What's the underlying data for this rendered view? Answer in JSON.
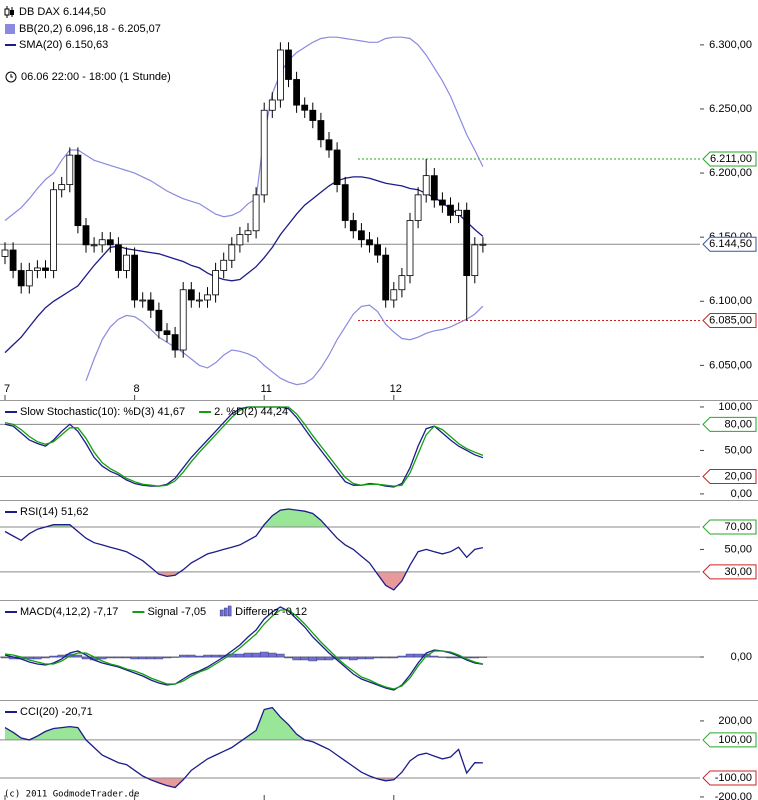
{
  "chart_data": [
    {
      "type": "candlestick",
      "title": "DB DAX 6.144,50",
      "subtitle": "06.06 22:00 - 18:00 (1 Stunde)",
      "categories": [
        "7",
        null,
        null,
        null,
        null,
        null,
        null,
        null,
        null,
        null,
        null,
        null,
        null,
        null,
        null,
        null,
        "8",
        null,
        null,
        null,
        null,
        null,
        null,
        null,
        null,
        null,
        null,
        null,
        null,
        null,
        null,
        null,
        "11",
        null,
        null,
        null,
        null,
        null,
        null,
        null,
        null,
        null,
        null,
        null,
        null,
        null,
        null,
        null,
        "12",
        null,
        null,
        null,
        null,
        null,
        null,
        null,
        null,
        null,
        null,
        null
      ],
      "open": [
        6135,
        6140,
        6124,
        6112,
        6124,
        6126,
        6124,
        6187,
        6191,
        6214,
        6159,
        6144,
        6144,
        6148,
        6144,
        6124,
        6136,
        6101,
        6101,
        6093,
        6077,
        6074,
        6062,
        6109,
        6101,
        6101,
        6105,
        6124,
        6132,
        6144,
        6152,
        6155,
        6183,
        6249,
        6257,
        6296,
        6273,
        6253,
        6249,
        6241,
        6226,
        6218,
        6191,
        6163,
        6155,
        6148,
        6144,
        6136,
        6101,
        6109,
        6120,
        6163,
        6183,
        6198,
        6179,
        6175,
        6167,
        6171,
        6120,
        6144
      ],
      "high": [
        6146,
        6146,
        6130,
        6130,
        6132,
        6132,
        6193,
        6197,
        6220,
        6220,
        6165,
        6150,
        6154,
        6154,
        6150,
        6142,
        6142,
        6107,
        6107,
        6099,
        6083,
        6080,
        6115,
        6115,
        6107,
        6111,
        6130,
        6138,
        6150,
        6158,
        6161,
        6189,
        6255,
        6263,
        6302,
        6302,
        6279,
        6259,
        6255,
        6247,
        6232,
        6224,
        6197,
        6169,
        6161,
        6154,
        6150,
        6142,
        6115,
        6126,
        6169,
        6189,
        6211,
        6204,
        6185,
        6181,
        6177,
        6177,
        6150,
        6150
      ],
      "low": [
        6129,
        6118,
        6106,
        6106,
        6118,
        6118,
        6118,
        6181,
        6185,
        6153,
        6138,
        6138,
        6138,
        6138,
        6118,
        6118,
        6095,
        6095,
        6087,
        6071,
        6068,
        6056,
        6056,
        6095,
        6095,
        6095,
        6099,
        6118,
        6126,
        6138,
        6146,
        6149,
        6177,
        6243,
        6251,
        6267,
        6247,
        6243,
        6235,
        6220,
        6212,
        6185,
        6157,
        6149,
        6142,
        6138,
        6130,
        6095,
        6095,
        6103,
        6114,
        6157,
        6177,
        6173,
        6169,
        6161,
        6161,
        6085,
        6114,
        6138
      ],
      "close": [
        6140,
        6124,
        6112,
        6124,
        6126,
        6124,
        6187,
        6191,
        6214,
        6159,
        6144,
        6144,
        6148,
        6144,
        6124,
        6136,
        6101,
        6101,
        6093,
        6077,
        6074,
        6062,
        6109,
        6101,
        6101,
        6105,
        6124,
        6132,
        6144,
        6152,
        6155,
        6183,
        6249,
        6257,
        6296,
        6273,
        6253,
        6249,
        6241,
        6226,
        6218,
        6191,
        6163,
        6155,
        6148,
        6144,
        6136,
        6101,
        6109,
        6120,
        6163,
        6183,
        6198,
        6179,
        6175,
        6167,
        6171,
        6120,
        6144,
        6144.5
      ],
      "up_color": "#ffffff",
      "down_color": "#000000",
      "bands": {
        "name": "BB(20,2) 6.096,18 - 6.205,07",
        "color": "#8a8ae0",
        "upper": [
          6163,
          6168,
          6173,
          6180,
          6188,
          6195,
          6200,
          6210,
          6218,
          6218,
          6214,
          6210,
          6208,
          6206,
          6204,
          6202,
          6200,
          6197,
          6194,
          6190,
          6186,
          6183,
          6180,
          6178,
          6176,
          6172,
          6168,
          6166,
          6167,
          6170,
          6176,
          6180,
          6230,
          6262,
          6278,
          6288,
          6294,
          6298,
          6302,
          6305,
          6306,
          6306,
          6305,
          6304,
          6303,
          6302,
          6302,
          6305,
          6306,
          6306,
          6305,
          6300,
          6292,
          6282,
          6272,
          6260,
          6245,
          6230,
          6218,
          6205.07
        ],
        "lower": [
          null,
          null,
          null,
          null,
          null,
          null,
          null,
          null,
          null,
          null,
          6038,
          6055,
          6070,
          6080,
          6086,
          6089,
          6088,
          6084,
          6078,
          6072,
          6068,
          6064,
          6060,
          6055,
          6050,
          6048,
          6052,
          6058,
          6062,
          6061,
          6059,
          6056,
          6050,
          6045,
          6040,
          6037,
          6035,
          6036,
          6040,
          6048,
          6058,
          6070,
          6080,
          6090,
          6096,
          6097,
          6092,
          6082,
          6076,
          6071,
          6070,
          6072,
          6075,
          6077,
          6078,
          6080,
          6083,
          6086,
          6090,
          6096.18
        ]
      },
      "series": [
        {
          "name": "SMA(20) 6.150,63",
          "color": "#1c1c8a",
          "values": [
            6060,
            6066,
            6072,
            6080,
            6088,
            6095,
            6100,
            6104,
            6108,
            6112,
            6120,
            6128,
            6135,
            6142,
            6143,
            6141,
            6140,
            6139,
            6138,
            6137,
            6135,
            6133,
            6131,
            6128,
            6126,
            6122,
            6119,
            6117,
            6116,
            6117,
            6122,
            6127,
            6134,
            6142,
            6152,
            6160,
            6168,
            6175,
            6180,
            6185,
            6190,
            6194,
            6196,
            6197,
            6197,
            6196,
            6194,
            6192,
            6191,
            6190,
            6188,
            6187,
            6184,
            6181,
            6177,
            6172,
            6168,
            6162,
            6156,
            6150.63
          ]
        }
      ],
      "ylim": [
        6023,
        6335
      ],
      "yticks": [
        {
          "value": 6300,
          "label": "6.300,00"
        },
        {
          "value": 6250,
          "label": "6.250,00"
        },
        {
          "value": 6200,
          "label": "6.200,00"
        },
        {
          "value": 6150,
          "label": "6.150,00"
        },
        {
          "value": 6100,
          "label": "6.100,00"
        },
        {
          "value": 6050,
          "label": "6.050,00"
        }
      ],
      "levels": [
        {
          "value": 6211,
          "label": "6.211,00",
          "color": "#22aa22",
          "style": "dashed"
        },
        {
          "value": 6144.5,
          "label": "6.144,50",
          "color": "#3355aa",
          "style": "solid"
        },
        {
          "value": 6085,
          "label": "6.085,00",
          "color": "#cc2222",
          "style": "dashed"
        }
      ],
      "grid": false
    },
    {
      "type": "line",
      "series": [
        {
          "name": "Slow Stochastic(10): %D(3) 41,67",
          "color": "#1c1c8a",
          "values": [
            80,
            78,
            70,
            62,
            58,
            55,
            62,
            72,
            80,
            72,
            58,
            42,
            32,
            26,
            22,
            16,
            12,
            10,
            9,
            9,
            11,
            18,
            30,
            42,
            52,
            62,
            72,
            82,
            92,
            98,
            100,
            100,
            100,
            100,
            100,
            98,
            88,
            75,
            62,
            50,
            38,
            26,
            14,
            10,
            10,
            12,
            11,
            9,
            8,
            12,
            30,
            55,
            75,
            78,
            70,
            62,
            55,
            50,
            45,
            41.67
          ]
        },
        {
          "name": "2. %D(2) 44,24",
          "color": "#10a010",
          "values": [
            82,
            80,
            74,
            66,
            60,
            57,
            60,
            68,
            76,
            76,
            64,
            48,
            36,
            29,
            24,
            18,
            14,
            11,
            10,
            9,
            10,
            15,
            25,
            37,
            48,
            58,
            68,
            78,
            88,
            96,
            100,
            100,
            100,
            100,
            100,
            100,
            92,
            80,
            67,
            55,
            43,
            31,
            19,
            12,
            10,
            11,
            11,
            10,
            9,
            10,
            24,
            46,
            68,
            78,
            74,
            66,
            58,
            52,
            48,
            44.24
          ]
        }
      ],
      "ylim": [
        -7,
        108
      ],
      "yticks": [
        {
          "value": 100,
          "label": "100,00"
        },
        {
          "value": 50,
          "label": "50,00"
        },
        {
          "value": 0,
          "label": "0,00"
        }
      ],
      "levels": [
        {
          "value": 80,
          "label": "80,00",
          "color": "#22aa22",
          "style": "solid"
        },
        {
          "value": 20,
          "label": "20,00",
          "color": "#cc2222",
          "style": "solid"
        }
      ],
      "grid": false
    },
    {
      "type": "line",
      "series": [
        {
          "name": "RSI(14) 51,62",
          "color": "#1c1c8a",
          "values": [
            66,
            62,
            58,
            64,
            68,
            70,
            72,
            72,
            72,
            66,
            60,
            56,
            54,
            52,
            50,
            48,
            44,
            40,
            34,
            28,
            26,
            27,
            32,
            38,
            42,
            46,
            48,
            50,
            52,
            54,
            58,
            62,
            72,
            80,
            85,
            86,
            85,
            84,
            82,
            76,
            68,
            60,
            54,
            50,
            44,
            38,
            28,
            18,
            14,
            22,
            36,
            48,
            50,
            48,
            46,
            48,
            52,
            43,
            50,
            51.62
          ]
        }
      ],
      "ylim": [
        5,
        94
      ],
      "yticks": [
        {
          "value": 50,
          "label": "50,00"
        }
      ],
      "levels": [
        {
          "value": 70,
          "label": "70,00",
          "color": "#22aa22",
          "style": "solid",
          "fill": "#99e699",
          "fill_side": "above"
        },
        {
          "value": 30,
          "label": "30,00",
          "color": "#cc2222",
          "style": "solid",
          "fill": "#e89a9a",
          "fill_side": "below"
        }
      ],
      "grid": false
    },
    {
      "type": "line",
      "series": [
        {
          "name": "MACD(4,12,2) -7,17",
          "color": "#1c1c8a",
          "values": [
            2,
            0,
            -2,
            -5,
            -7,
            -8,
            -6,
            -2,
            4,
            6,
            2,
            -3,
            -6,
            -8,
            -10,
            -13,
            -16,
            -19,
            -23,
            -26,
            -28,
            -27,
            -22,
            -17,
            -14,
            -10,
            -5,
            0,
            6,
            12,
            20,
            27,
            38,
            45,
            50,
            46,
            38,
            30,
            20,
            12,
            4,
            -3,
            -10,
            -17,
            -22,
            -25,
            -28,
            -31,
            -33,
            -28,
            -18,
            -6,
            4,
            7,
            6,
            4,
            1,
            -3,
            -6,
            -7.17
          ]
        },
        {
          "name": "Signal -7,05",
          "color": "#10a010",
          "values": [
            3,
            2,
            0,
            -3,
            -5,
            -7,
            -7,
            -4,
            1,
            4,
            4,
            0,
            -4,
            -7,
            -9,
            -12,
            -14,
            -17,
            -21,
            -24,
            -27,
            -27,
            -24,
            -19,
            -15,
            -12,
            -7,
            -2,
            3,
            9,
            16,
            23,
            33,
            41,
            47,
            47,
            41,
            33,
            24,
            15,
            7,
            -1,
            -8,
            -14,
            -20,
            -23,
            -27,
            -30,
            -32,
            -29,
            -21,
            -9,
            1,
            6,
            6,
            5,
            2,
            -2,
            -5,
            -7.05
          ]
        },
        {
          "name": "Differenz -0,12",
          "color": "#7070d8",
          "type": "bar",
          "values": [
            -1,
            -2,
            -2,
            -2,
            -2,
            -1,
            1,
            2,
            3,
            2,
            -2,
            -3,
            -2,
            -1,
            -1,
            -1,
            -2,
            -2,
            -2,
            -2,
            -1,
            0,
            2,
            2,
            1,
            2,
            2,
            2,
            3,
            3,
            4,
            4,
            5,
            4,
            3,
            -1,
            -3,
            -3,
            -4,
            -3,
            -3,
            -2,
            -2,
            -3,
            -2,
            -2,
            -1,
            -1,
            -1,
            1,
            3,
            3,
            3,
            1,
            0,
            -1,
            -1,
            -1,
            -1,
            -0.12
          ]
        }
      ],
      "ylim": [
        -43,
        57
      ],
      "yticks": [
        {
          "value": 0,
          "label": "0,00"
        }
      ],
      "grid": true
    },
    {
      "type": "line",
      "series": [
        {
          "name": "CCI(20) -20,71",
          "color": "#1c1c8a",
          "values": [
            165,
            140,
            110,
            100,
            120,
            145,
            160,
            165,
            170,
            165,
            100,
            60,
            20,
            0,
            -20,
            -30,
            -60,
            -90,
            -110,
            -126,
            -140,
            -150,
            -110,
            -60,
            -30,
            0,
            20,
            40,
            60,
            90,
            120,
            150,
            260,
            270,
            220,
            180,
            130,
            100,
            90,
            70,
            50,
            20,
            -10,
            -40,
            -70,
            -90,
            -105,
            -115,
            -110,
            -70,
            -10,
            20,
            30,
            15,
            0,
            10,
            50,
            -74,
            -20,
            -20.71
          ]
        }
      ],
      "ylim": [
        -216,
        310
      ],
      "yticks": [
        {
          "value": 200,
          "label": "200,00"
        },
        {
          "value": -200,
          "label": "-200,00"
        }
      ],
      "levels": [
        {
          "value": 100,
          "label": "100,00",
          "color": "#22aa22",
          "style": "solid",
          "fill": "#99e699",
          "fill_side": "above"
        },
        {
          "value": -100,
          "label": "-100,00",
          "color": "#cc2222",
          "style": "solid",
          "fill": "#e89a9a",
          "fill_side": "below"
        }
      ],
      "grid": false
    }
  ],
  "footer": "(c) 2011 GodmodeTrader.de"
}
